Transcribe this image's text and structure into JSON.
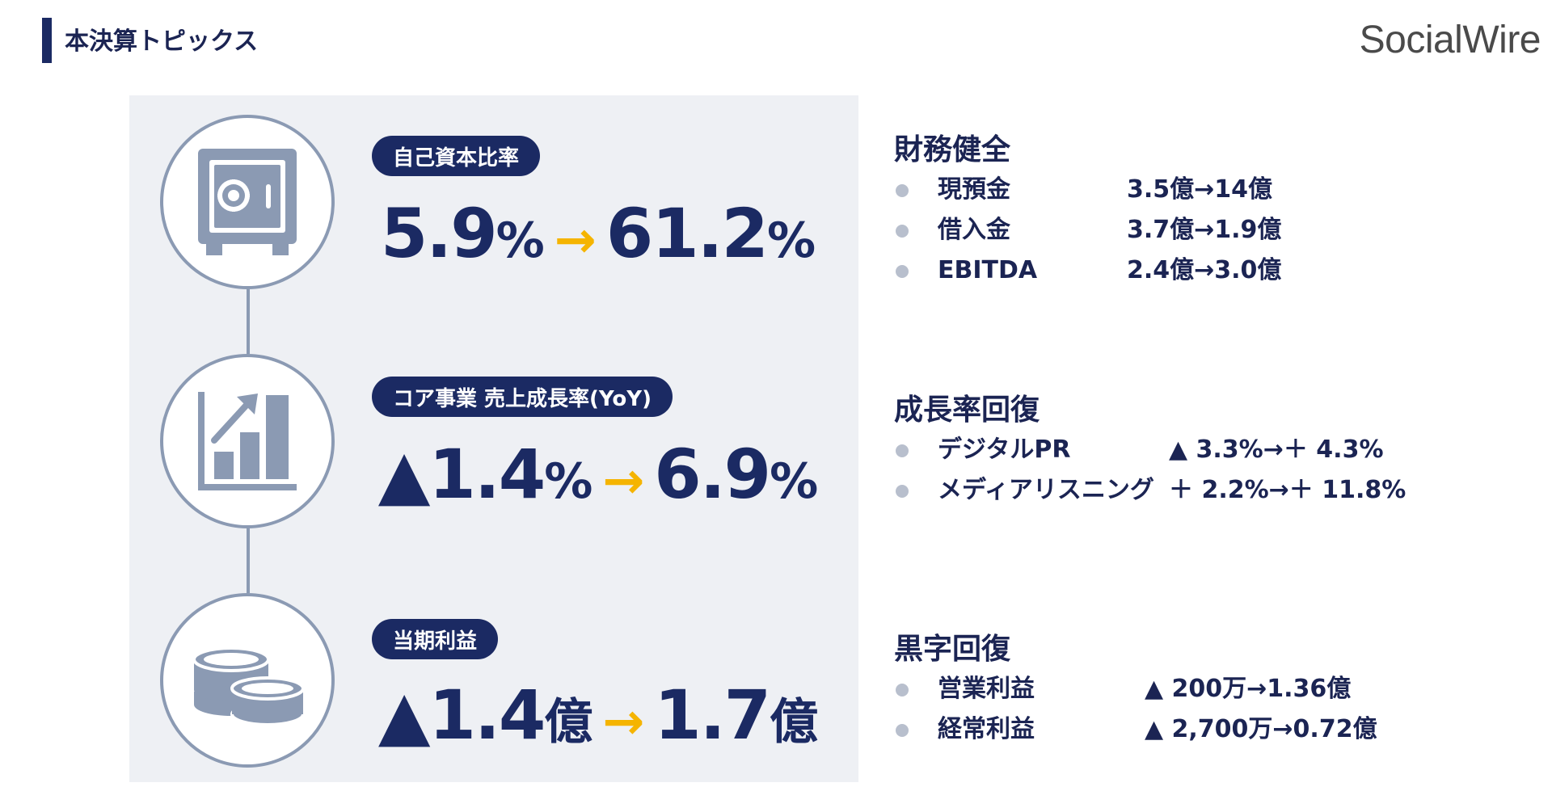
{
  "header": {
    "title": "本決算トピックス",
    "logo": "SocialWire"
  },
  "kpis": [
    {
      "icon": "safe-icon",
      "label": "自己資本比率",
      "prefix": "",
      "from": "5.9",
      "from_unit": "%",
      "arrow": "→",
      "to": "61.2",
      "to_unit": "%"
    },
    {
      "icon": "growth-chart-icon",
      "label": "コア事業 売上成長率(YoY)",
      "prefix": "▲",
      "from": "1.4",
      "from_unit": "%",
      "arrow": "→",
      "to": "6.9",
      "to_unit": "%"
    },
    {
      "icon": "coins-icon",
      "label": "当期利益",
      "prefix": "▲",
      "from": "1.4",
      "from_unit": "億",
      "arrow": "→",
      "to": "1.7",
      "to_unit": "億"
    }
  ],
  "sections": [
    {
      "title": "財務健全",
      "items": [
        {
          "label": "現預金",
          "value": "3.5億→14億"
        },
        {
          "label": "借入金",
          "value": "3.7億→1.9億"
        },
        {
          "label": "EBITDA",
          "value": "2.4億→3.0億"
        }
      ]
    },
    {
      "title": "成長率回復",
      "items": [
        {
          "label": "デジタルPR",
          "value": "▲ 3.3%→＋ 4.3%"
        },
        {
          "label": "メディアリスニング",
          "value": "＋ 2.2%→＋ 11.8%"
        }
      ]
    },
    {
      "title": "黒字回復",
      "items": [
        {
          "label": "営業利益",
          "value": "▲ 200万→1.36億"
        },
        {
          "label": "経常利益",
          "value": "▲ 2,700万→0.72億"
        }
      ]
    }
  ],
  "colors": {
    "navy": "#1b2a63",
    "arrow": "#f5b400",
    "icon": "#8b9ab3",
    "panel": "#eef0f4"
  }
}
